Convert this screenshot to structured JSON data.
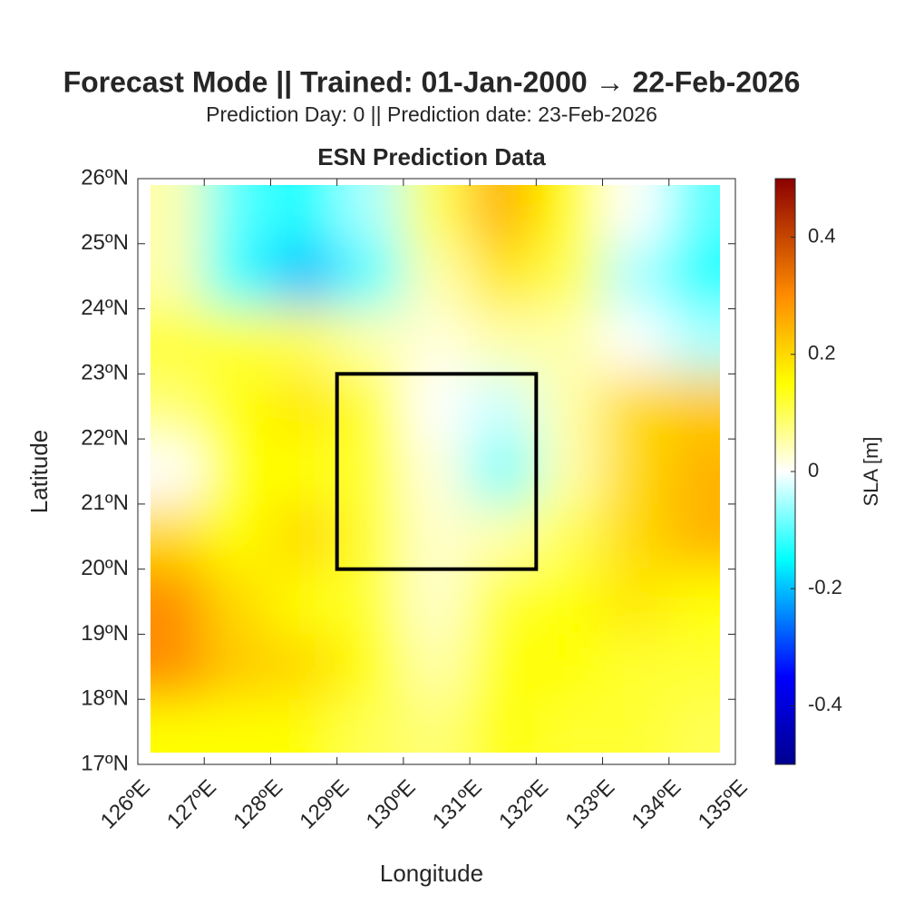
{
  "chart_data": {
    "type": "heatmap",
    "title": "Forecast Mode || Trained: 01-Jan-2000 → 22-Feb-2026",
    "subtitle": "Prediction Day: 0 || Prediction date: 23-Feb-2026",
    "plot_title": "ESN Prediction Data",
    "x_label": "Longitude",
    "y_label": "Latitude",
    "colorbar_label": "SLA [m]",
    "x": [
      126.5,
      127.5,
      128.5,
      129.5,
      130.5,
      131.5,
      132.5,
      133.5,
      134.5
    ],
    "y": [
      25.5,
      24.5,
      23.5,
      22.5,
      21.5,
      20.5,
      19.5,
      18.5,
      17.5
    ],
    "values": [
      [
        0.05,
        -0.1,
        -0.15,
        -0.05,
        0.1,
        0.25,
        0.15,
        0.0,
        -0.1
      ],
      [
        0.05,
        -0.12,
        -0.2,
        -0.1,
        0.05,
        0.18,
        0.1,
        -0.05,
        -0.15
      ],
      [
        0.12,
        0.12,
        0.1,
        0.05,
        0.02,
        0.05,
        0.05,
        0.0,
        -0.05
      ],
      [
        0.08,
        0.15,
        0.18,
        0.12,
        0.0,
        -0.03,
        0.05,
        0.2,
        0.22
      ],
      [
        0.0,
        0.15,
        0.15,
        0.12,
        0.02,
        -0.08,
        0.05,
        0.2,
        0.25
      ],
      [
        0.2,
        0.15,
        0.2,
        0.12,
        0.03,
        0.05,
        0.1,
        0.2,
        0.25
      ],
      [
        0.3,
        0.2,
        0.15,
        0.12,
        0.03,
        0.12,
        0.15,
        0.18,
        0.15
      ],
      [
        0.3,
        0.22,
        0.2,
        0.15,
        0.05,
        0.15,
        0.15,
        0.12,
        0.12
      ],
      [
        0.15,
        0.15,
        0.15,
        0.1,
        0.08,
        0.15,
        0.12,
        0.12,
        0.1
      ]
    ],
    "xlim": [
      126,
      135
    ],
    "ylim": [
      17,
      26
    ],
    "xticks": [
      {
        "value": 126,
        "label": "126ºE"
      },
      {
        "value": 127,
        "label": "127ºE"
      },
      {
        "value": 128,
        "label": "128ºE"
      },
      {
        "value": 129,
        "label": "129ºE"
      },
      {
        "value": 130,
        "label": "130ºE"
      },
      {
        "value": 131,
        "label": "131ºE"
      },
      {
        "value": 132,
        "label": "132ºE"
      },
      {
        "value": 133,
        "label": "133ºE"
      },
      {
        "value": 134,
        "label": "134ºE"
      },
      {
        "value": 135,
        "label": "135ºE"
      }
    ],
    "yticks": [
      {
        "value": 17,
        "label": "17ºN"
      },
      {
        "value": 18,
        "label": "18ºN"
      },
      {
        "value": 19,
        "label": "19ºN"
      },
      {
        "value": 20,
        "label": "20ºN"
      },
      {
        "value": 21,
        "label": "21ºN"
      },
      {
        "value": 22,
        "label": "22ºN"
      },
      {
        "value": 23,
        "label": "23ºN"
      },
      {
        "value": 24,
        "label": "24ºN"
      },
      {
        "value": 25,
        "label": "25ºN"
      },
      {
        "value": 26,
        "label": "26ºN"
      }
    ],
    "clim": [
      -0.5,
      0.5
    ],
    "cticks": [
      -0.4,
      -0.2,
      0,
      0.2,
      0.4
    ],
    "box": {
      "lon": [
        129,
        132
      ],
      "lat": [
        20,
        23
      ]
    }
  }
}
